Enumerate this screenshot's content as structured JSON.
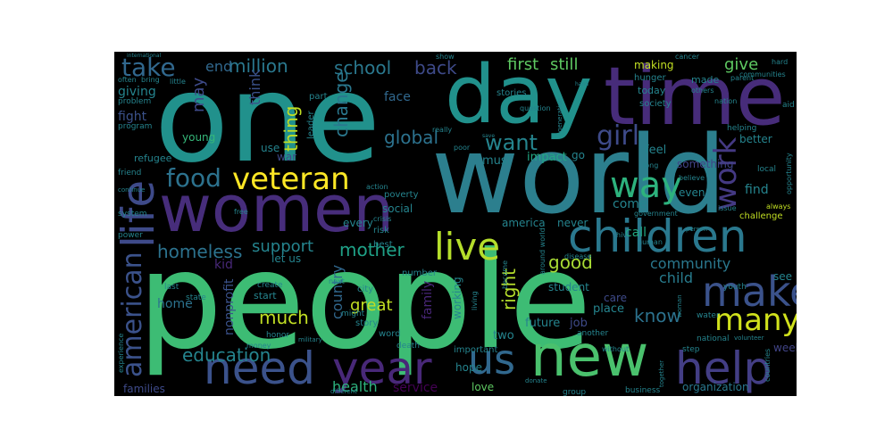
{
  "image": {
    "kind": "word cloud",
    "background_color": "#000000",
    "palette": [
      "#440154",
      "#3b528b",
      "#21918c",
      "#31688e",
      "#35b779",
      "#5ec962",
      "#90d743",
      "#fde725"
    ]
  },
  "words": [
    {
      "id": "one",
      "text": "one",
      "color": "#21918c"
    },
    {
      "id": "day",
      "text": "day",
      "color": "#21918c"
    },
    {
      "id": "time",
      "text": "time",
      "color": "#472c7a"
    },
    {
      "id": "world",
      "text": "world",
      "color": "#2c7f8e"
    },
    {
      "id": "people",
      "text": "people",
      "color": "#3dbc74"
    },
    {
      "id": "women",
      "text": "women",
      "color": "#472d7b"
    },
    {
      "id": "life",
      "text": "life",
      "color": "#3e4a89"
    },
    {
      "id": "children",
      "text": "children",
      "color": "#2a788e"
    },
    {
      "id": "make",
      "text": "make",
      "color": "#3b528b"
    },
    {
      "id": "new",
      "text": "new",
      "color": "#4ac16d"
    },
    {
      "id": "help",
      "text": "help",
      "color": "#433e85"
    },
    {
      "id": "need",
      "text": "need",
      "color": "#3b528b"
    },
    {
      "id": "year",
      "text": "year",
      "color": "#482878"
    },
    {
      "id": "us",
      "text": "us",
      "color": "#31688e"
    },
    {
      "id": "live",
      "text": "live",
      "color": "#b5de2b"
    },
    {
      "id": "veteran",
      "text": "veteran",
      "color": "#fde725"
    },
    {
      "id": "way",
      "text": "way",
      "color": "#2db27d"
    },
    {
      "id": "work",
      "text": "work",
      "color": "#443983"
    },
    {
      "id": "many",
      "text": "many",
      "color": "#d0e11c"
    },
    {
      "id": "food",
      "text": "food",
      "color": "#2c728e"
    },
    {
      "id": "take",
      "text": "take",
      "color": "#31688e"
    },
    {
      "id": "american",
      "text": "american",
      "color": "#3b528b"
    },
    {
      "id": "girl",
      "text": "girl",
      "color": "#3e4a89"
    },
    {
      "id": "want",
      "text": "want",
      "color": "#25848e"
    },
    {
      "id": "global",
      "text": "global",
      "color": "#2c728e"
    },
    {
      "id": "million",
      "text": "million",
      "color": "#2a788e"
    },
    {
      "id": "school",
      "text": "school",
      "color": "#2a788e"
    },
    {
      "id": "back",
      "text": "back",
      "color": "#3e4a89"
    },
    {
      "id": "first",
      "text": "first",
      "color": "#5ec962"
    },
    {
      "id": "still",
      "text": "still",
      "color": "#5ec962"
    },
    {
      "id": "give",
      "text": "give",
      "color": "#5ec962"
    },
    {
      "id": "end",
      "text": "end",
      "color": "#31688e"
    },
    {
      "id": "change",
      "text": "change",
      "color": "#2a788e"
    },
    {
      "id": "thing",
      "text": "thing",
      "color": "#c2df23"
    },
    {
      "id": "think",
      "text": "think",
      "color": "#3b528b"
    },
    {
      "id": "may",
      "text": "may",
      "color": "#3e4a89"
    },
    {
      "id": "community",
      "text": "community",
      "color": "#2a788e"
    },
    {
      "id": "homeless",
      "text": "homeless",
      "color": "#2c728e"
    },
    {
      "id": "mother",
      "text": "mother",
      "color": "#1fa187"
    },
    {
      "id": "support",
      "text": "support",
      "color": "#25848e"
    },
    {
      "id": "education",
      "text": "education",
      "color": "#25848e"
    },
    {
      "id": "country",
      "text": "country",
      "color": "#31688e"
    },
    {
      "id": "much",
      "text": "much",
      "color": "#c2df23"
    },
    {
      "id": "good",
      "text": "good",
      "color": "#a8db34"
    },
    {
      "id": "know",
      "text": "know",
      "color": "#2c728e"
    },
    {
      "id": "right",
      "text": "right",
      "color": "#b5de2b"
    },
    {
      "id": "health",
      "text": "health",
      "color": "#2db27d"
    },
    {
      "id": "service",
      "text": "service",
      "color": "#440154"
    },
    {
      "id": "child",
      "text": "child",
      "color": "#287c8e"
    },
    {
      "id": "great",
      "text": "great",
      "color": "#c2df23"
    },
    {
      "id": "family",
      "text": "family",
      "color": "#482677"
    },
    {
      "id": "face",
      "text": "face",
      "color": "#31688e"
    },
    {
      "id": "let_us",
      "text": "let us",
      "color": "#25848e"
    },
    {
      "id": "kid",
      "text": "kid",
      "color": "#482878"
    },
    {
      "id": "home",
      "text": "home",
      "color": "#2c728e"
    },
    {
      "id": "nonprofit",
      "text": "nonprofit",
      "color": "#3b528b"
    },
    {
      "id": "come",
      "text": "come",
      "color": "#25848e"
    },
    {
      "id": "call",
      "text": "call",
      "color": "#22a884"
    },
    {
      "id": "feel",
      "text": "feel",
      "color": "#25848e"
    },
    {
      "id": "go",
      "text": "go",
      "color": "#25848e"
    },
    {
      "id": "find",
      "text": "find",
      "color": "#25848e"
    },
    {
      "id": "better",
      "text": "better",
      "color": "#25848e"
    },
    {
      "id": "something",
      "text": "something",
      "color": "#414487"
    },
    {
      "id": "even",
      "text": "even",
      "color": "#25848e"
    },
    {
      "id": "made",
      "text": "made",
      "color": "#25848e"
    },
    {
      "id": "today",
      "text": "today",
      "color": "#25848e"
    },
    {
      "id": "making",
      "text": "making",
      "color": "#c2df23"
    },
    {
      "id": "society",
      "text": "society",
      "color": "#25848e"
    },
    {
      "id": "impact",
      "text": "impact",
      "color": "#22a884"
    },
    {
      "id": "must",
      "text": "must",
      "color": "#25848e"
    },
    {
      "id": "fight",
      "text": "fight",
      "color": "#3b528b"
    },
    {
      "id": "giving",
      "text": "giving",
      "color": "#25848e"
    },
    {
      "id": "young",
      "text": "young",
      "color": "#35b779"
    },
    {
      "id": "use",
      "text": "use",
      "color": "#25848e"
    },
    {
      "id": "war",
      "text": "war",
      "color": "#3e4a89"
    },
    {
      "id": "social",
      "text": "social",
      "color": "#25848e"
    },
    {
      "id": "student",
      "text": "student",
      "color": "#25848e"
    },
    {
      "id": "working",
      "text": "working",
      "color": "#25848e"
    },
    {
      "id": "job",
      "text": "job",
      "color": "#3e4a89"
    },
    {
      "id": "place",
      "text": "place",
      "color": "#25848e"
    },
    {
      "id": "future",
      "text": "future",
      "color": "#25848e"
    },
    {
      "id": "two",
      "text": "two",
      "color": "#25848e"
    },
    {
      "id": "never",
      "text": "never",
      "color": "#25848e"
    },
    {
      "id": "love",
      "text": "love",
      "color": "#5ec962"
    },
    {
      "id": "organization",
      "text": "organization",
      "color": "#2a788e"
    },
    {
      "id": "week",
      "text": "week",
      "color": "#414487"
    },
    {
      "id": "families",
      "text": "families",
      "color": "#3e4a89"
    },
    {
      "id": "see",
      "text": "see",
      "color": "#25848e"
    },
    {
      "id": "care",
      "text": "care",
      "color": "#3e4a89"
    },
    {
      "id": "every",
      "text": "every",
      "color": "#25848e"
    },
    {
      "id": "start",
      "text": "start",
      "color": "#25848e"
    },
    {
      "id": "create",
      "text": "create",
      "color": "#25848e"
    },
    {
      "id": "city",
      "text": "city",
      "color": "#25848e"
    },
    {
      "id": "story",
      "text": "story",
      "color": "#25848e"
    },
    {
      "id": "hope",
      "text": "hope",
      "color": "#25848e"
    },
    {
      "id": "important",
      "text": "important",
      "color": "#25848e"
    },
    {
      "id": "america",
      "text": "america",
      "color": "#25848e"
    },
    {
      "id": "part",
      "text": "part",
      "color": "#25848e"
    },
    {
      "id": "leader",
      "text": "leader",
      "color": "#25848e"
    },
    {
      "id": "poverty",
      "text": "poverty",
      "color": "#25848e"
    },
    {
      "id": "action",
      "text": "action",
      "color": "#25848e"
    },
    {
      "id": "refugee",
      "text": "refugee",
      "color": "#25848e"
    },
    {
      "id": "program",
      "text": "program",
      "color": "#25848e"
    },
    {
      "id": "problem",
      "text": "problem",
      "color": "#25848e"
    },
    {
      "id": "often",
      "text": "often",
      "color": "#25848e"
    },
    {
      "id": "bring",
      "text": "bring",
      "color": "#25848e"
    },
    {
      "id": "little",
      "text": "little",
      "color": "#25848e"
    },
    {
      "id": "stories",
      "text": "stories",
      "color": "#25848e"
    },
    {
      "id": "hunger",
      "text": "hunger",
      "color": "#25848e"
    },
    {
      "id": "hand",
      "text": "hand",
      "color": "#25848e"
    },
    {
      "id": "cancer",
      "text": "cancer",
      "color": "#25848e"
    },
    {
      "id": "parent",
      "text": "parent",
      "color": "#25848e"
    },
    {
      "id": "hard",
      "text": "hard",
      "color": "#25848e"
    },
    {
      "id": "communities",
      "text": "communities",
      "color": "#25848e"
    },
    {
      "id": "nation",
      "text": "nation",
      "color": "#25848e"
    },
    {
      "id": "others",
      "text": "others",
      "color": "#25848e"
    },
    {
      "id": "aid",
      "text": "aid",
      "color": "#25848e"
    },
    {
      "id": "helping",
      "text": "helping",
      "color": "#25848e"
    },
    {
      "id": "opportunity",
      "text": "opportunity",
      "color": "#25848e"
    },
    {
      "id": "local",
      "text": "local",
      "color": "#25848e"
    },
    {
      "id": "long",
      "text": "long",
      "color": "#25848e"
    },
    {
      "id": "believe",
      "text": "believe",
      "color": "#25848e"
    },
    {
      "id": "government",
      "text": "government",
      "color": "#25848e"
    },
    {
      "id": "issue",
      "text": "issue",
      "color": "#25848e"
    },
    {
      "id": "challenge",
      "text": "challenge",
      "color": "#c2df23"
    },
    {
      "id": "always",
      "text": "always",
      "color": "#c2df23"
    },
    {
      "id": "question",
      "text": "question",
      "color": "#25848e"
    },
    {
      "id": "generation",
      "text": "generation",
      "color": "#25848e"
    },
    {
      "id": "really",
      "text": "really",
      "color": "#25848e"
    },
    {
      "id": "international",
      "text": "international",
      "color": "#25848e"
    },
    {
      "id": "show",
      "text": "show",
      "color": "#25848e"
    },
    {
      "id": "poor",
      "text": "poor",
      "color": "#25848e"
    },
    {
      "id": "save",
      "text": "save",
      "color": "#25848e"
    },
    {
      "id": "hiv",
      "text": "hiv",
      "color": "#25848e"
    },
    {
      "id": "friend",
      "text": "friend",
      "color": "#25848e"
    },
    {
      "id": "system",
      "text": "system",
      "color": "#25848e"
    },
    {
      "id": "continue",
      "text": "continue",
      "color": "#25848e"
    },
    {
      "id": "power",
      "text": "power",
      "color": "#25848e"
    },
    {
      "id": "free",
      "text": "free",
      "color": "#25848e"
    },
    {
      "id": "risk",
      "text": "risk",
      "color": "#25848e"
    },
    {
      "id": "crisis",
      "text": "crisis",
      "color": "#25848e"
    },
    {
      "id": "best",
      "text": "best",
      "color": "#25848e"
    },
    {
      "id": "number",
      "text": "number",
      "color": "#25848e"
    },
    {
      "id": "next",
      "text": "next",
      "color": "#25848e"
    },
    {
      "id": "might",
      "text": "might",
      "color": "#25848e"
    },
    {
      "id": "word",
      "text": "word",
      "color": "#25848e"
    },
    {
      "id": "death",
      "text": "death",
      "color": "#25848e"
    },
    {
      "id": "military",
      "text": "military",
      "color": "#25848e"
    },
    {
      "id": "state",
      "text": "state",
      "color": "#25848e"
    },
    {
      "id": "last",
      "text": "last",
      "color": "#25848e"
    },
    {
      "id": "honor",
      "text": "honor",
      "color": "#25848e"
    },
    {
      "id": "money",
      "text": "money",
      "color": "#25848e"
    },
    {
      "id": "experience",
      "text": "experience",
      "color": "#25848e"
    },
    {
      "id": "disease",
      "text": "disease",
      "color": "#25848e"
    },
    {
      "id": "around_world",
      "text": "around world",
      "color": "#25848e"
    },
    {
      "id": "become",
      "text": "become",
      "color": "#25848e"
    },
    {
      "id": "living",
      "text": "living",
      "color": "#25848e"
    },
    {
      "id": "another",
      "text": "another",
      "color": "#25848e"
    },
    {
      "id": "without",
      "text": "without",
      "color": "#25848e"
    },
    {
      "id": "youth",
      "text": "youth",
      "color": "#25848e"
    },
    {
      "id": "water",
      "text": "water",
      "color": "#25848e"
    },
    {
      "id": "national",
      "text": "national",
      "color": "#25848e"
    },
    {
      "id": "volunteer",
      "text": "volunteer",
      "color": "#25848e"
    },
    {
      "id": "step",
      "text": "step",
      "color": "#25848e"
    },
    {
      "id": "business",
      "text": "business",
      "color": "#25848e"
    },
    {
      "id": "group",
      "text": "group",
      "color": "#25848e"
    },
    {
      "id": "donate",
      "text": "donate",
      "color": "#25848e"
    },
    {
      "id": "countries",
      "text": "countries",
      "color": "#25848e"
    },
    {
      "id": "different",
      "text": "different",
      "color": "#25848e"
    },
    {
      "id": "together",
      "text": "together",
      "color": "#25848e"
    },
    {
      "id": "woman",
      "text": "woman",
      "color": "#25848e"
    },
    {
      "id": "human",
      "text": "human",
      "color": "#25848e"
    },
    {
      "id": "person",
      "text": "person",
      "color": "#25848e"
    }
  ]
}
